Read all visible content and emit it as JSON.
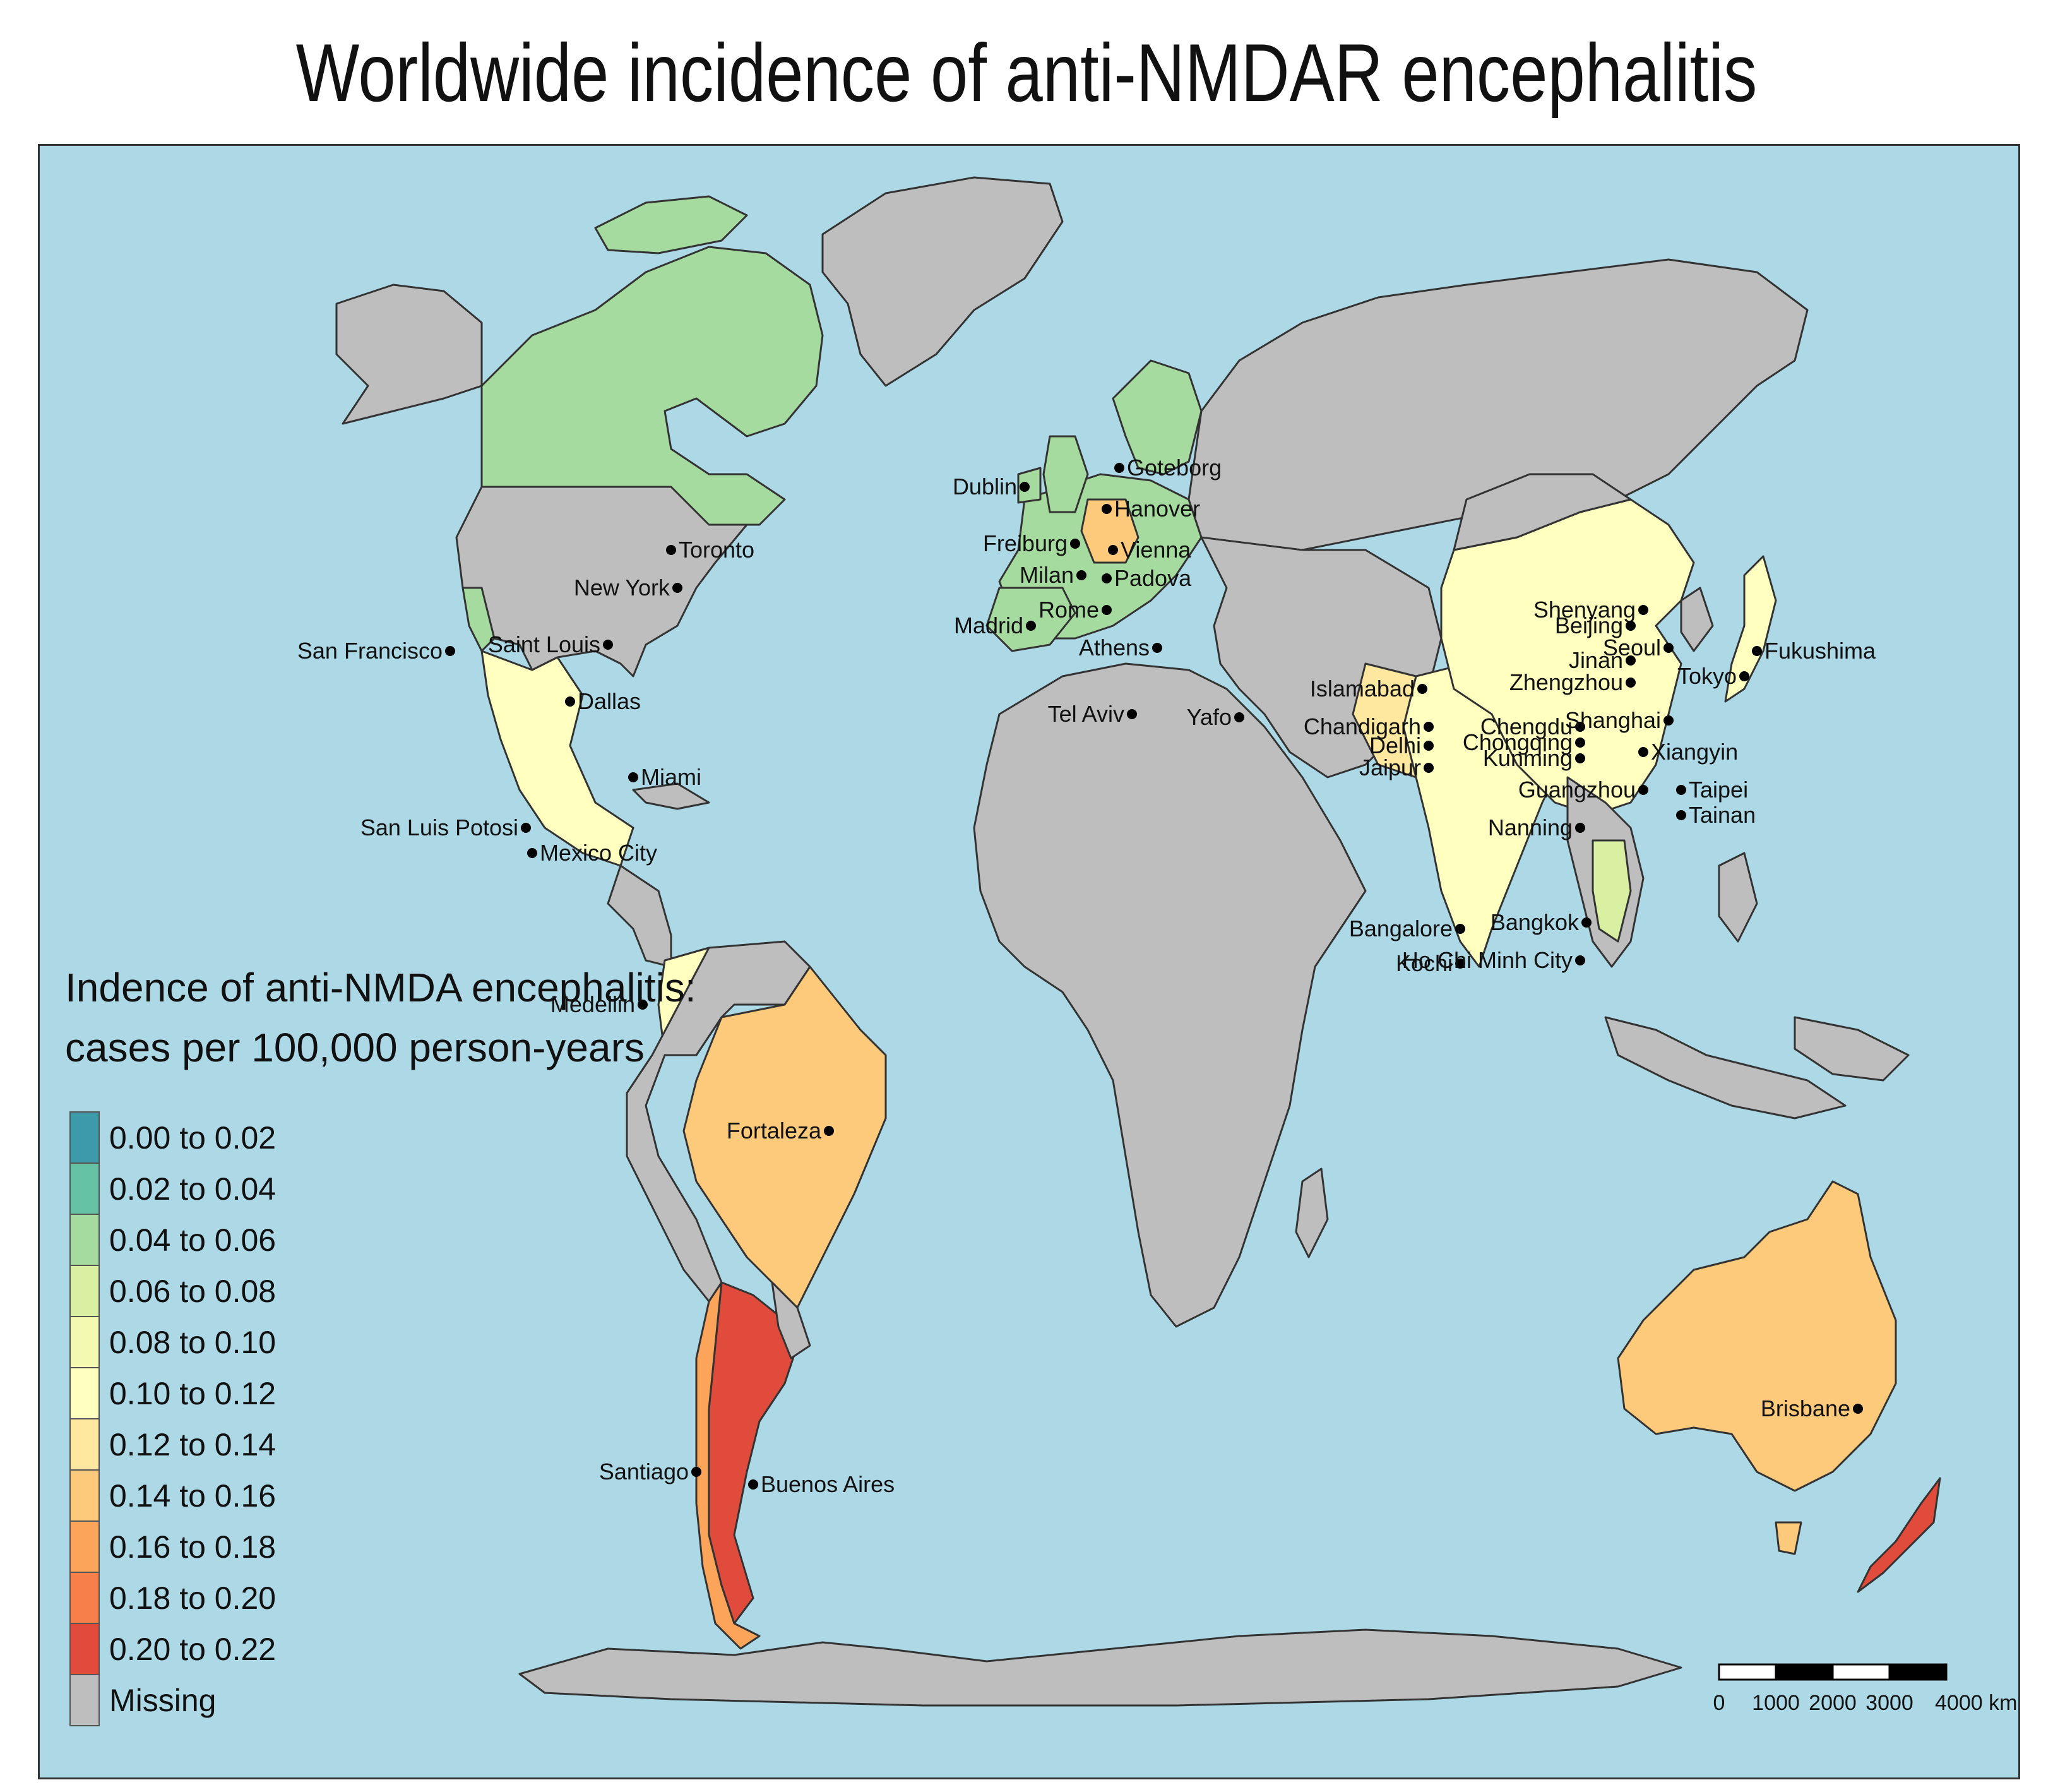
{
  "title": "Worldwide incidence of anti-NMDAR encephalitis",
  "legend": {
    "title_line1": "Indence of anti-NMDA encephalitis:",
    "title_line2": "cases per 100,000 person-years",
    "items": [
      {
        "label": "0.00 to 0.02",
        "color": "#3d9aab"
      },
      {
        "label": "0.02 to 0.04",
        "color": "#66c2a5"
      },
      {
        "label": "0.04 to 0.06",
        "color": "#a6dba0"
      },
      {
        "label": "0.06 to 0.08",
        "color": "#d9f0a3"
      },
      {
        "label": "0.08 to 0.10",
        "color": "#f3f9b0"
      },
      {
        "label": "0.10 to 0.12",
        "color": "#ffffbf"
      },
      {
        "label": "0.12 to 0.14",
        "color": "#fee8a0"
      },
      {
        "label": "0.14 to 0.16",
        "color": "#fdc97a"
      },
      {
        "label": "0.16 to 0.18",
        "color": "#fca55a"
      },
      {
        "label": "0.18 to 0.20",
        "color": "#f7804a"
      },
      {
        "label": "0.20 to 0.22",
        "color": "#e04b3c"
      },
      {
        "label": "Missing",
        "color": "#bebebe"
      }
    ]
  },
  "regions": [
    {
      "name": "Canada",
      "bin": "0.04 to 0.06"
    },
    {
      "name": "United States",
      "bin": "Missing"
    },
    {
      "name": "Mexico",
      "bin": "0.10 to 0.12"
    },
    {
      "name": "Colombia",
      "bin": "0.10 to 0.12"
    },
    {
      "name": "Brazil",
      "bin": "0.14 to 0.16"
    },
    {
      "name": "Chile",
      "bin": "0.16 to 0.18"
    },
    {
      "name": "Argentina",
      "bin": "0.20 to 0.22"
    },
    {
      "name": "Europe",
      "bin": "0.04 to 0.06"
    },
    {
      "name": "Germany",
      "bin": "0.14 to 0.16"
    },
    {
      "name": "China",
      "bin": "0.10 to 0.12"
    },
    {
      "name": "India",
      "bin": "0.10 to 0.12"
    },
    {
      "name": "Japan",
      "bin": "0.10 to 0.12"
    },
    {
      "name": "Thailand",
      "bin": "0.06 to 0.08"
    },
    {
      "name": "Australia",
      "bin": "0.14 to 0.16"
    },
    {
      "name": "New Zealand",
      "bin": "0.20 to 0.22"
    }
  ],
  "cities": [
    {
      "name": "San Francisco"
    },
    {
      "name": "Saint Louis"
    },
    {
      "name": "New York"
    },
    {
      "name": "Toronto"
    },
    {
      "name": "Dallas"
    },
    {
      "name": "Miami"
    },
    {
      "name": "San Luis Potosi"
    },
    {
      "name": "Mexico City"
    },
    {
      "name": "Medellin"
    },
    {
      "name": "Fortaleza"
    },
    {
      "name": "Santiago"
    },
    {
      "name": "Buenos Aires"
    },
    {
      "name": "Dublin"
    },
    {
      "name": "Goteborg"
    },
    {
      "name": "Hanover"
    },
    {
      "name": "Freiburg"
    },
    {
      "name": "Vienna"
    },
    {
      "name": "Milan"
    },
    {
      "name": "Padova"
    },
    {
      "name": "Rome"
    },
    {
      "name": "Madrid"
    },
    {
      "name": "Athens"
    },
    {
      "name": "Tel Aviv"
    },
    {
      "name": "Yafo"
    },
    {
      "name": "Islamabad"
    },
    {
      "name": "Chandigarh"
    },
    {
      "name": "Delhi"
    },
    {
      "name": "Jaipur"
    },
    {
      "name": "Bangalore"
    },
    {
      "name": "Kochi"
    },
    {
      "name": "Shenyang"
    },
    {
      "name": "Beijing"
    },
    {
      "name": "Seoul"
    },
    {
      "name": "Jinan"
    },
    {
      "name": "Zhengzhou"
    },
    {
      "name": "Tokyo"
    },
    {
      "name": "Fukushima"
    },
    {
      "name": "Chengdu"
    },
    {
      "name": "Shanghai"
    },
    {
      "name": "Chongqing"
    },
    {
      "name": "Kunming"
    },
    {
      "name": "Xiangyin"
    },
    {
      "name": "Guangzhou"
    },
    {
      "name": "Taipei"
    },
    {
      "name": "Tainan"
    },
    {
      "name": "Nanning"
    },
    {
      "name": "Bangkok"
    },
    {
      "name": "Ho Chi Minh City"
    },
    {
      "name": "Brisbane"
    }
  ],
  "scale_bar": {
    "labels": [
      "0",
      "1000",
      "2000",
      "3000",
      "4000 km"
    ]
  }
}
